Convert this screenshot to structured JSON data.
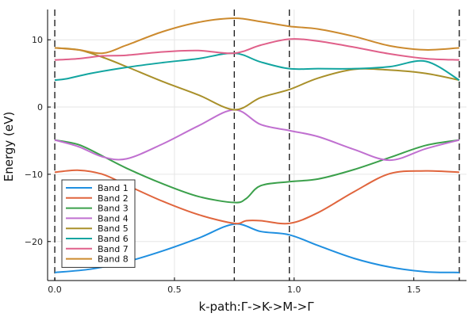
{
  "chart_data": {
    "type": "line",
    "title": "",
    "xlabel": "k-path:Γ->K->M->Γ",
    "ylabel": "Energy (eV)",
    "xlim": [
      -0.03,
      1.72
    ],
    "ylim": [
      -25.8,
      14.5
    ],
    "x_ticks": [
      0.0,
      0.5,
      1.0,
      1.5
    ],
    "x_tick_labels": [
      "0.0",
      "0.5",
      "1.0",
      "1.5"
    ],
    "y_ticks": [
      -20,
      -10,
      0,
      10
    ],
    "y_tick_labels": [
      "−20",
      "−10",
      "0",
      "10"
    ],
    "grid": true,
    "legend_position": "bottom-left",
    "high_symmetry_points": [
      0.0,
      0.75,
      0.98,
      1.69
    ],
    "series": [
      {
        "name": "Band 1",
        "color": "#1f8fe0",
        "x": [
          0.0,
          0.15,
          0.3,
          0.45,
          0.6,
          0.75,
          0.86,
          0.98,
          1.1,
          1.25,
          1.4,
          1.55,
          1.69
        ],
        "y": [
          -24.6,
          -24.1,
          -23.0,
          -21.4,
          -19.5,
          -17.4,
          -18.5,
          -19.0,
          -20.6,
          -22.5,
          -23.8,
          -24.5,
          -24.6
        ]
      },
      {
        "name": "Band 2",
        "color": "#e0653d",
        "x": [
          0.0,
          0.1,
          0.2,
          0.3,
          0.45,
          0.6,
          0.75,
          0.8,
          0.86,
          0.98,
          1.1,
          1.25,
          1.4,
          1.55,
          1.69
        ],
        "y": [
          -9.7,
          -9.4,
          -10.0,
          -11.6,
          -14.0,
          -16.0,
          -17.3,
          -16.9,
          -16.9,
          -17.3,
          -15.7,
          -12.6,
          -9.9,
          -9.5,
          -9.7
        ]
      },
      {
        "name": "Band 3",
        "color": "#3ba04b",
        "x": [
          0.0,
          0.1,
          0.2,
          0.3,
          0.45,
          0.6,
          0.75,
          0.8,
          0.86,
          0.98,
          1.1,
          1.25,
          1.4,
          1.55,
          1.69
        ],
        "y": [
          -4.9,
          -5.6,
          -7.3,
          -9.1,
          -11.4,
          -13.3,
          -14.2,
          -13.6,
          -11.7,
          -11.1,
          -10.7,
          -9.3,
          -7.5,
          -5.7,
          -4.9
        ]
      },
      {
        "name": "Band 4",
        "color": "#c070d0",
        "x": [
          0.0,
          0.1,
          0.2,
          0.3,
          0.45,
          0.6,
          0.75,
          0.86,
          0.98,
          1.1,
          1.25,
          1.4,
          1.55,
          1.69
        ],
        "y": [
          -4.9,
          -5.9,
          -7.4,
          -7.7,
          -5.5,
          -2.8,
          -0.4,
          -2.6,
          -3.5,
          -4.4,
          -6.3,
          -7.9,
          -6.2,
          -4.9
        ]
      },
      {
        "name": "Band 5",
        "color": "#a9902a",
        "x": [
          0.0,
          0.1,
          0.2,
          0.3,
          0.45,
          0.6,
          0.75,
          0.86,
          0.98,
          1.1,
          1.25,
          1.4,
          1.55,
          1.69
        ],
        "y": [
          8.8,
          8.5,
          7.4,
          6.0,
          3.8,
          1.8,
          -0.4,
          1.4,
          2.6,
          4.3,
          5.6,
          5.5,
          5.0,
          4.0
        ]
      },
      {
        "name": "Band 6",
        "color": "#12a5a0",
        "x": [
          0.0,
          0.05,
          0.15,
          0.3,
          0.45,
          0.6,
          0.75,
          0.86,
          0.98,
          1.1,
          1.25,
          1.4,
          1.55,
          1.69
        ],
        "y": [
          4.0,
          4.2,
          5.0,
          5.9,
          6.6,
          7.2,
          8.0,
          6.7,
          5.7,
          5.7,
          5.7,
          6.0,
          6.8,
          4.0
        ]
      },
      {
        "name": "Band 7",
        "color": "#e0608a",
        "x": [
          0.0,
          0.1,
          0.2,
          0.3,
          0.45,
          0.6,
          0.75,
          0.86,
          0.98,
          1.1,
          1.25,
          1.4,
          1.55,
          1.69
        ],
        "y": [
          7.0,
          7.2,
          7.6,
          7.7,
          8.2,
          8.4,
          8.0,
          9.2,
          10.1,
          9.8,
          8.9,
          7.9,
          7.2,
          7.0
        ]
      },
      {
        "name": "Band 8",
        "color": "#cc8a2e",
        "x": [
          0.0,
          0.1,
          0.2,
          0.3,
          0.45,
          0.6,
          0.75,
          0.86,
          0.98,
          1.1,
          1.25,
          1.4,
          1.55,
          1.69
        ],
        "y": [
          8.8,
          8.5,
          8.0,
          9.2,
          11.2,
          12.6,
          13.2,
          12.7,
          12.0,
          11.6,
          10.5,
          9.1,
          8.5,
          8.8
        ]
      }
    ]
  }
}
